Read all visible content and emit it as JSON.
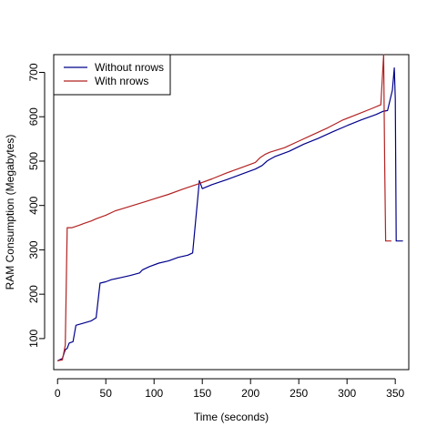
{
  "chart_data": {
    "type": "line",
    "xlabel": "Time (seconds)",
    "ylabel": "RAM Consumption (Megabytes)",
    "xlim": [
      -4,
      364
    ],
    "ylim": [
      30,
      740
    ],
    "x_ticks": [
      0,
      50,
      100,
      150,
      200,
      250,
      300,
      350
    ],
    "y_ticks": [
      100,
      200,
      300,
      400,
      500,
      600,
      700
    ],
    "grid": false,
    "legend_position": "top-left",
    "series": [
      {
        "name": "Without nrows",
        "color": "#00008b",
        "points": [
          [
            0,
            50
          ],
          [
            5,
            55
          ],
          [
            8,
            75
          ],
          [
            10,
            78
          ],
          [
            12,
            90
          ],
          [
            16,
            93
          ],
          [
            19,
            130
          ],
          [
            24,
            133
          ],
          [
            35,
            140
          ],
          [
            40,
            147
          ],
          [
            44,
            225
          ],
          [
            50,
            228
          ],
          [
            56,
            233
          ],
          [
            65,
            237
          ],
          [
            75,
            242
          ],
          [
            85,
            248
          ],
          [
            88,
            255
          ],
          [
            95,
            262
          ],
          [
            105,
            270
          ],
          [
            115,
            275
          ],
          [
            125,
            283
          ],
          [
            135,
            288
          ],
          [
            140,
            293
          ],
          [
            147,
            456
          ],
          [
            150,
            438
          ],
          [
            160,
            447
          ],
          [
            175,
            458
          ],
          [
            190,
            470
          ],
          [
            205,
            482
          ],
          [
            212,
            490
          ],
          [
            217,
            500
          ],
          [
            220,
            504
          ],
          [
            225,
            510
          ],
          [
            240,
            522
          ],
          [
            255,
            538
          ],
          [
            270,
            551
          ],
          [
            285,
            566
          ],
          [
            300,
            580
          ],
          [
            315,
            593
          ],
          [
            330,
            605
          ],
          [
            337,
            612
          ],
          [
            342,
            614
          ],
          [
            347,
            660
          ],
          [
            349,
            710
          ],
          [
            350,
            640
          ],
          [
            351,
            320
          ],
          [
            358,
            320
          ]
        ]
      },
      {
        "name": "With nrows",
        "color": "#b22222",
        "points": [
          [
            0,
            50
          ],
          [
            5,
            52
          ],
          [
            8,
            85
          ],
          [
            10,
            350
          ],
          [
            15,
            350
          ],
          [
            22,
            355
          ],
          [
            28,
            360
          ],
          [
            35,
            365
          ],
          [
            40,
            370
          ],
          [
            50,
            378
          ],
          [
            60,
            388
          ],
          [
            75,
            398
          ],
          [
            90,
            408
          ],
          [
            100,
            415
          ],
          [
            115,
            425
          ],
          [
            130,
            437
          ],
          [
            145,
            448
          ],
          [
            160,
            460
          ],
          [
            175,
            473
          ],
          [
            190,
            485
          ],
          [
            205,
            497
          ],
          [
            210,
            508
          ],
          [
            215,
            515
          ],
          [
            220,
            520
          ],
          [
            235,
            530
          ],
          [
            250,
            545
          ],
          [
            265,
            560
          ],
          [
            280,
            575
          ],
          [
            295,
            592
          ],
          [
            310,
            605
          ],
          [
            325,
            618
          ],
          [
            335,
            627
          ],
          [
            338,
            740
          ],
          [
            339,
            500
          ],
          [
            340,
            320
          ],
          [
            346,
            320
          ]
        ]
      }
    ]
  }
}
